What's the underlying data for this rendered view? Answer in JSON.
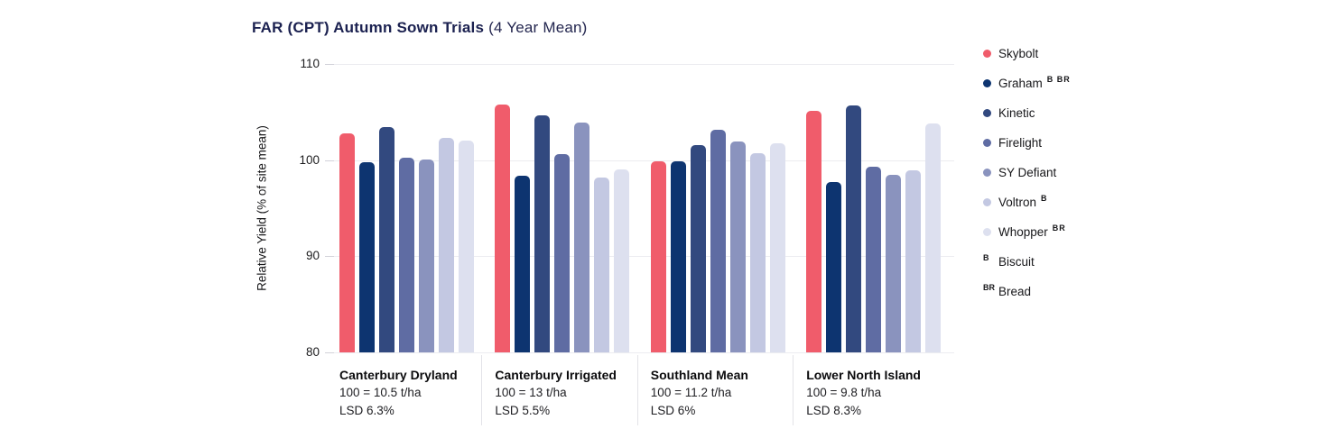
{
  "header": {
    "title_bold": "FAR (CPT) Autumn Sown Trials",
    "title_regular": "(4 Year Mean)",
    "title_color": "#1b2150"
  },
  "chart_data": {
    "type": "bar",
    "title": "FAR (CPT) Autumn Sown Trials (4 Year Mean)",
    "xlabel": "",
    "ylabel": "Relative Yield (% of site mean)",
    "ylim": [
      80,
      110
    ],
    "yticks": [
      110,
      100,
      90,
      80
    ],
    "grid": true,
    "legend_position": "right",
    "categories": [
      {
        "name": "Canterbury Dryland",
        "mean_label": "100 = 10.5 t/ha",
        "lsd_label": "LSD 6.3%"
      },
      {
        "name": "Canterbury Irrigated",
        "mean_label": "100 = 13 t/ha",
        "lsd_label": "LSD 5.5%"
      },
      {
        "name": "Southland Mean",
        "mean_label": "100 = 11.2 t/ha",
        "lsd_label": "LSD 6%"
      },
      {
        "name": "Lower North Island",
        "mean_label": "100 = 9.8 t/ha",
        "lsd_label": "LSD 8.3%"
      }
    ],
    "series": [
      {
        "name": "Skybolt",
        "superscript": "",
        "color": "#f05c6b",
        "values": [
          102.8,
          105.8,
          99.9,
          105.1
        ]
      },
      {
        "name": "Graham",
        "superscript": "B BR",
        "color": "#0d3470",
        "values": [
          99.8,
          98.4,
          99.9,
          97.7
        ]
      },
      {
        "name": "Kinetic",
        "superscript": "",
        "color": "#32497f",
        "values": [
          103.4,
          104.7,
          101.6,
          105.7
        ]
      },
      {
        "name": "Firelight",
        "superscript": "",
        "color": "#5f6ca3",
        "values": [
          100.3,
          100.6,
          103.2,
          99.3
        ]
      },
      {
        "name": "SY Defiant",
        "superscript": "",
        "color": "#8a93be",
        "values": [
          100.1,
          103.9,
          101.9,
          98.5
        ]
      },
      {
        "name": "Voltron",
        "superscript": "B",
        "color": "#c3c8e2",
        "values": [
          102.3,
          98.2,
          100.7,
          98.9
        ]
      },
      {
        "name": "Whopper",
        "superscript": "BR",
        "color": "#dde0ef",
        "values": [
          102.0,
          99.0,
          101.8,
          103.8
        ]
      }
    ],
    "footnotes": [
      {
        "prefix": "B",
        "label": "Biscuit"
      },
      {
        "prefix": "BR",
        "label": "Bread"
      }
    ]
  }
}
